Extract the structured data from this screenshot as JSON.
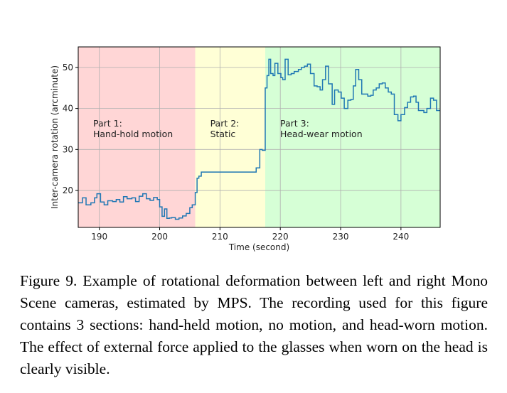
{
  "chart_data": {
    "type": "line",
    "title": "",
    "xlabel": "Time (second)",
    "ylabel": "Inter-camera rotation (arcminute)",
    "xlim": [
      186.5,
      246.5
    ],
    "ylim": [
      11,
      55
    ],
    "xticks": [
      190,
      200,
      210,
      220,
      230,
      240
    ],
    "yticks": [
      20,
      30,
      40,
      50
    ],
    "grid": true,
    "line_color": "#1f77b4",
    "regions": [
      {
        "label_line1": "Part 1:",
        "label_line2": "Hand-hold motion",
        "x_start": 186.5,
        "x_end": 205.9,
        "color": "#ffd6d6"
      },
      {
        "label_line1": "Part 2:",
        "label_line2": "Static",
        "x_start": 205.9,
        "x_end": 217.5,
        "color": "#ffffd6"
      },
      {
        "label_line1": "Part 3:",
        "label_line2": "Head-wear motion",
        "x_start": 217.5,
        "x_end": 246.5,
        "color": "#d6ffd6"
      }
    ],
    "series": [
      {
        "x": [
          186.5,
          187.2,
          187.8,
          188.6,
          189.2,
          189.6,
          190.2,
          190.8,
          191.4,
          192.2,
          192.8,
          193.4,
          194.0,
          194.6,
          195.4,
          196.0,
          196.6,
          197.2,
          197.8,
          198.4,
          199.0,
          199.6,
          200.0,
          200.4,
          200.8,
          201.2,
          201.6,
          202.0,
          202.6,
          203.2,
          203.8,
          204.4,
          205.0,
          205.4,
          205.9,
          206.2,
          206.5,
          206.9,
          215.6,
          216.0,
          216.6,
          217.0,
          217.5,
          217.8,
          218.1,
          218.4,
          218.8,
          219.1,
          219.6,
          220.1,
          220.4,
          220.8,
          221.3,
          221.8,
          222.3,
          223.0,
          223.5,
          224.0,
          224.5,
          225.0,
          225.6,
          226.1,
          226.6,
          227.0,
          227.5,
          228.0,
          228.6,
          229.0,
          229.6,
          230.1,
          230.6,
          231.2,
          231.7,
          232.1,
          232.5,
          233.0,
          233.5,
          234.0,
          234.5,
          235.0,
          235.4,
          235.9,
          236.4,
          236.9,
          237.4,
          237.9,
          238.4,
          238.9,
          239.5,
          240.0,
          240.6,
          241.1,
          241.6,
          242.1,
          242.5,
          242.9,
          243.3,
          243.8,
          244.3,
          244.9,
          245.4,
          245.9,
          246.5
        ],
        "y": [
          17.0,
          18.2,
          16.5,
          17.0,
          18.2,
          19.2,
          17.2,
          16.5,
          17.5,
          17.3,
          17.8,
          17.2,
          18.5,
          18.0,
          18.2,
          17.3,
          18.6,
          19.2,
          18.0,
          17.6,
          18.3,
          17.8,
          16.0,
          13.7,
          15.5,
          13.2,
          13.3,
          13.4,
          13.0,
          13.3,
          13.8,
          14.4,
          15.8,
          16.5,
          19.5,
          23.0,
          23.5,
          24.5,
          24.5,
          25.5,
          30.0,
          29.8,
          45.0,
          48.0,
          52.0,
          48.5,
          48.0,
          51.0,
          48.5,
          47.5,
          47.0,
          52.0,
          48.2,
          48.5,
          49.0,
          49.5,
          50.0,
          50.3,
          50.8,
          48.5,
          45.5,
          45.3,
          44.5,
          47.0,
          50.3,
          46.0,
          41.0,
          44.5,
          44.0,
          42.5,
          40.0,
          42.0,
          42.2,
          45.5,
          49.5,
          47.0,
          43.5,
          43.5,
          43.0,
          43.2,
          44.5,
          45.0,
          46.0,
          46.2,
          45.0,
          44.0,
          43.5,
          38.5,
          37.0,
          38.5,
          40.2,
          41.5,
          42.8,
          43.0,
          41.5,
          39.5,
          39.5,
          39.0,
          40.0,
          42.5,
          42.0,
          39.5,
          39.5
        ]
      }
    ]
  },
  "caption": "Figure 9.  Example of rotational deformation between left and right Mono Scene cameras, estimated by MPS. The recording used for this figure contains 3 sections: hand-held motion, no motion, and head-worn motion. The effect of external force applied to the glasses when worn on the head is clearly visible."
}
